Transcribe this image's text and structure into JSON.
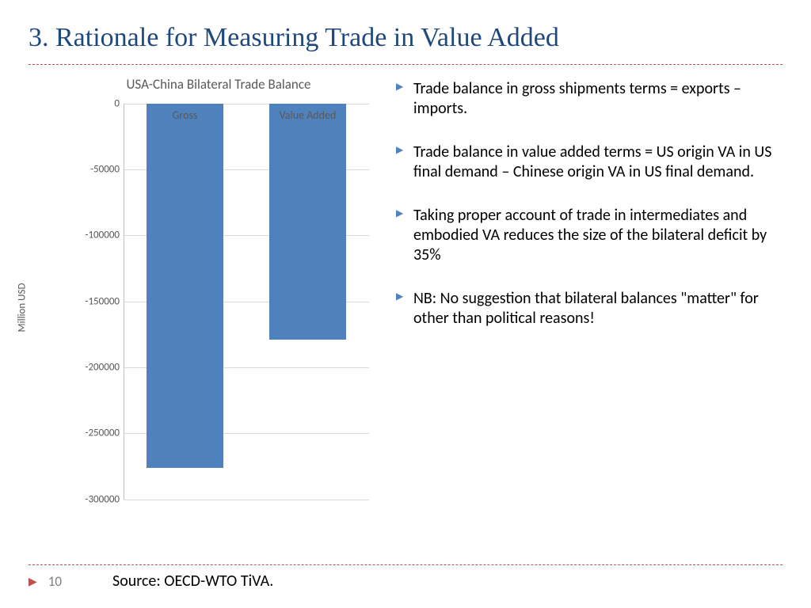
{
  "title": "3. Rationale for Measuring Trade in Value Added",
  "chart": {
    "type": "bar",
    "title": "USA-China Bilateral Trade Balance",
    "ylabel": "Million USD",
    "ylim": [
      -300000,
      0
    ],
    "ytick_step": 50000,
    "yticks": [
      0,
      -50000,
      -100000,
      -150000,
      -200000,
      -250000,
      -300000
    ],
    "categories": [
      "Gross",
      "Value Added"
    ],
    "values": [
      -276000,
      -179000
    ],
    "bar_color": "#4f81bd",
    "grid_color": "#d9d9d9",
    "axis_color": "#bfbfbf",
    "label_color": "#595959",
    "background_color": "#ffffff",
    "bar_width": 0.62,
    "title_fontsize": 17,
    "label_fontsize": 13
  },
  "bullets": [
    "Trade balance in gross shipments terms = exports – imports.",
    "Trade balance in value added terms = US origin VA in US final demand – Chinese origin VA in US final demand.",
    "Taking proper account of trade in intermediates and embodied VA reduces the size of the bilateral deficit by 35%",
    "NB: No suggestion that bilateral balances \"matter\" for other than political reasons!"
  ],
  "footer": {
    "page": "10",
    "source": "Source: OECD-WTO TiVA."
  }
}
